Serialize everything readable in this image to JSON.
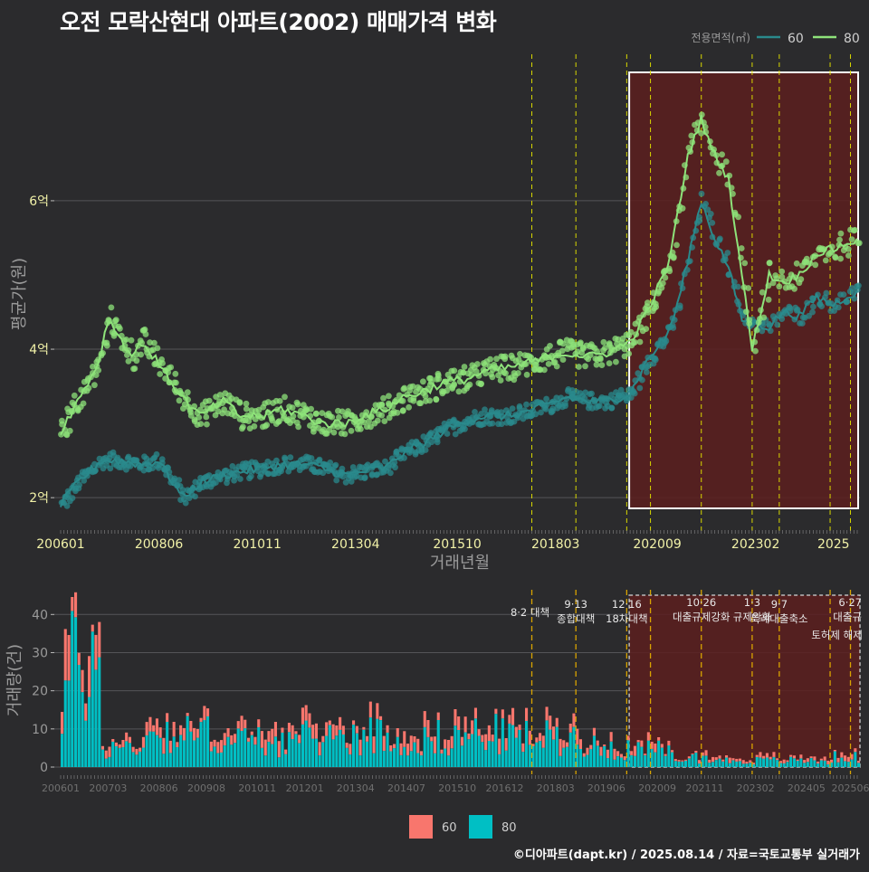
{
  "title": "오전 모락산현대 아파트(2002) 매매가격 변화",
  "credit": "©디아파트(dapt.kr) / 2025.08.14 / 자료=국토교통부 실거래가",
  "colors": {
    "background": "#2b2b2d",
    "grid": "#555558",
    "line60": "#2a8a8c",
    "line80": "#8ee37a",
    "bar60": "#f8766d",
    "bar80": "#00bfc4",
    "policy_line": "#d8d800",
    "policy_line_bottom": "#d9a400",
    "highlight_fill": "#5c1e1e",
    "highlight_border": "#ffffff"
  },
  "chart_data": [
    {
      "type": "line",
      "panel": "price",
      "xlabel": "거래년월",
      "ylabel": "평균가(원)",
      "xlim": [
        "2006-01",
        "2025-08"
      ],
      "ylim": [
        1.6,
        7.9
      ],
      "y_unit": "억",
      "y_ticks": [
        {
          "value": 2,
          "label": "2억"
        },
        {
          "value": 4,
          "label": "4억"
        },
        {
          "value": 6,
          "label": "6억"
        }
      ],
      "x_ticks": [
        "200601",
        "200806",
        "201011",
        "201304",
        "201510",
        "201803",
        "202009",
        "202302",
        "2025"
      ],
      "legend": {
        "title": "전용면적(㎡)",
        "position": "top-right",
        "entries": [
          "60",
          "80"
        ]
      },
      "series": [
        {
          "name": "60",
          "color": "#2a8a8c",
          "points": [
            [
              "2006-01",
              1.9
            ],
            [
              "2006-06",
              2.2
            ],
            [
              "2007-01",
              2.5
            ],
            [
              "2007-06",
              2.5
            ],
            [
              "2008-01",
              2.45
            ],
            [
              "2008-06",
              2.5
            ],
            [
              "2009-01",
              2.0
            ],
            [
              "2009-06",
              2.2
            ],
            [
              "2010-01",
              2.3
            ],
            [
              "2010-06",
              2.35
            ],
            [
              "2011-01",
              2.4
            ],
            [
              "2011-06",
              2.45
            ],
            [
              "2012-01",
              2.45
            ],
            [
              "2012-06",
              2.4
            ],
            [
              "2013-01",
              2.3
            ],
            [
              "2013-06",
              2.35
            ],
            [
              "2014-01",
              2.4
            ],
            [
              "2014-06",
              2.6
            ],
            [
              "2015-01",
              2.75
            ],
            [
              "2015-06",
              2.9
            ],
            [
              "2016-01",
              3.05
            ],
            [
              "2016-06",
              3.1
            ],
            [
              "2017-01",
              3.1
            ],
            [
              "2017-06",
              3.15
            ],
            [
              "2018-01",
              3.25
            ],
            [
              "2018-06",
              3.35
            ],
            [
              "2019-01",
              3.3
            ],
            [
              "2019-06",
              3.3
            ],
            [
              "2020-01",
              3.4
            ],
            [
              "2020-06",
              3.85
            ],
            [
              "2020-12",
              4.2
            ],
            [
              "2021-03",
              4.6
            ],
            [
              "2021-06",
              5.2
            ],
            [
              "2021-10",
              6.0
            ],
            [
              "2022-01",
              5.6
            ],
            [
              "2022-06",
              5.1
            ],
            [
              "2022-10",
              4.4
            ],
            [
              "2023-02",
              4.35
            ],
            [
              "2023-06",
              4.3
            ],
            [
              "2023-10",
              4.5
            ],
            [
              "2024-03",
              4.45
            ],
            [
              "2024-08",
              4.7
            ],
            [
              "2025-01",
              4.6
            ],
            [
              "2025-06",
              4.75
            ]
          ]
        },
        {
          "name": "80",
          "color": "#8ee37a",
          "points": [
            [
              "2006-01",
              2.9
            ],
            [
              "2006-06",
              3.3
            ],
            [
              "2006-12",
              3.8
            ],
            [
              "2007-03",
              4.4
            ],
            [
              "2007-06",
              4.2
            ],
            [
              "2007-10",
              3.9
            ],
            [
              "2008-01",
              4.1
            ],
            [
              "2008-06",
              3.8
            ],
            [
              "2008-12",
              3.4
            ],
            [
              "2009-06",
              3.1
            ],
            [
              "2010-01",
              3.3
            ],
            [
              "2010-06",
              3.1
            ],
            [
              "2011-01",
              3.1
            ],
            [
              "2011-06",
              3.2
            ],
            [
              "2012-01",
              3.1
            ],
            [
              "2012-06",
              3.0
            ],
            [
              "2013-01",
              3.0
            ],
            [
              "2013-06",
              3.1
            ],
            [
              "2014-01",
              3.2
            ],
            [
              "2014-06",
              3.35
            ],
            [
              "2015-01",
              3.45
            ],
            [
              "2015-06",
              3.55
            ],
            [
              "2016-01",
              3.6
            ],
            [
              "2016-06",
              3.7
            ],
            [
              "2017-01",
              3.75
            ],
            [
              "2017-06",
              3.8
            ],
            [
              "2018-01",
              3.9
            ],
            [
              "2018-06",
              3.95
            ],
            [
              "2019-01",
              3.9
            ],
            [
              "2019-06",
              3.95
            ],
            [
              "2020-01",
              4.1
            ],
            [
              "2020-06",
              4.5
            ],
            [
              "2020-12",
              5.1
            ],
            [
              "2021-03",
              5.8
            ],
            [
              "2021-06",
              6.6
            ],
            [
              "2021-10",
              7.1
            ],
            [
              "2022-01",
              6.7
            ],
            [
              "2022-06",
              6.3
            ],
            [
              "2022-10",
              5.0
            ],
            [
              "2023-01",
              4.0
            ],
            [
              "2023-06",
              5.0
            ],
            [
              "2023-10",
              4.9
            ],
            [
              "2024-03",
              5.0
            ],
            [
              "2024-08",
              5.3
            ],
            [
              "2025-01",
              5.35
            ],
            [
              "2025-06",
              5.45
            ]
          ]
        }
      ],
      "policy_lines": [
        "2017-08",
        "2018-09",
        "2019-12",
        "2020-07",
        "2021-10",
        "2023-01",
        "2023-09",
        "2024-12",
        "2025-06"
      ],
      "highlight_range": [
        "2020-01",
        "2025-08"
      ]
    },
    {
      "type": "bar",
      "panel": "volume",
      "stacked": true,
      "ylabel": "거래량(건)",
      "ylim": [
        0,
        46
      ],
      "y_ticks": [
        0,
        10,
        20,
        30,
        40
      ],
      "x_ticks": [
        "200601",
        "200703",
        "200806",
        "200908",
        "201011",
        "201201",
        "201304",
        "201407",
        "201510",
        "201612",
        "201803",
        "201906",
        "202009",
        "202111",
        "202302",
        "202405",
        "202506"
      ],
      "legend": {
        "position": "bottom",
        "entries": [
          "60",
          "80"
        ]
      },
      "series": [
        {
          "name": "60",
          "color": "#f8766d"
        },
        {
          "name": "80",
          "color": "#00bfc4"
        }
      ],
      "monthly_80_by_year": [
        30,
        6,
        10,
        10,
        8,
        8,
        9,
        10,
        8,
        9,
        10,
        9,
        9,
        6,
        5,
        3,
        2,
        2,
        2,
        3
      ],
      "monthly_60_by_year": [
        8,
        2,
        3,
        3,
        3,
        3,
        3,
        3,
        3,
        3,
        3,
        3,
        3,
        2,
        2,
        1,
        1,
        1,
        1,
        1
      ],
      "annotations": [
        {
          "month": "2017-08",
          "lines": [
            "8·2 대책"
          ]
        },
        {
          "month": "2018-09",
          "lines": [
            "9·13",
            "종합대책"
          ]
        },
        {
          "month": "2019-12",
          "lines": [
            "12·16",
            "18차대책"
          ]
        },
        {
          "month": "2021-10",
          "lines": [
            "10·26",
            "대출규제강화"
          ]
        },
        {
          "month": "2023-01",
          "lines": [
            "1·3",
            "규제완화"
          ]
        },
        {
          "month": "2023-09",
          "lines": [
            "9·7",
            "특례대출축소"
          ]
        },
        {
          "month": "2025-02",
          "lines": [
            "토허제 해제"
          ]
        },
        {
          "month": "2025-06",
          "lines": [
            "6·27",
            "대출규"
          ]
        }
      ],
      "highlight_range": [
        "2020-01",
        "2025-08"
      ]
    }
  ]
}
